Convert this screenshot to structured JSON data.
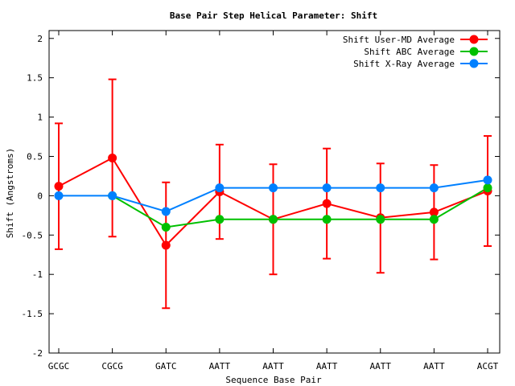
{
  "chart_data": {
    "type": "line",
    "title": "Base Pair Step Helical Parameter: Shift",
    "xlabel": "Sequence Base Pair",
    "ylabel": "Shift (Angstroms)",
    "categories": [
      "GCGC",
      "CGCG",
      "GATC",
      "AATT",
      "AATT",
      "AATT",
      "AATT",
      "AATT",
      "ACGT"
    ],
    "ylim": [
      -2,
      2.1
    ],
    "yticks": [
      -2,
      -1.5,
      -1,
      -0.5,
      0,
      0.5,
      1,
      1.5,
      2
    ],
    "ytick_labels": [
      "-2",
      "-1.5",
      "-1",
      "-0.5",
      "0",
      "0.5",
      "1",
      "1.5",
      "2"
    ],
    "grid": false,
    "legend_position": "top-right",
    "series": [
      {
        "name": "Shift User-MD Average",
        "color": "#ff0000",
        "values": [
          0.12,
          0.48,
          -0.63,
          0.05,
          -0.3,
          -0.1,
          -0.28,
          -0.21,
          0.06
        ],
        "error_low": [
          -0.68,
          -0.52,
          -1.43,
          -0.55,
          -1.0,
          -0.8,
          -0.98,
          -0.81,
          -0.64
        ],
        "error_high": [
          0.92,
          1.48,
          0.17,
          0.65,
          0.4,
          0.6,
          0.41,
          0.39,
          0.76
        ]
      },
      {
        "name": "Shift ABC Average",
        "color": "#00c000",
        "values": [
          null,
          0.0,
          -0.4,
          -0.3,
          -0.3,
          -0.3,
          -0.3,
          -0.3,
          0.1
        ]
      },
      {
        "name": "Shift X-Ray Average",
        "color": "#0080ff",
        "values": [
          0.0,
          0.0,
          -0.2,
          0.1,
          0.1,
          0.1,
          0.1,
          0.1,
          0.2
        ]
      }
    ]
  }
}
